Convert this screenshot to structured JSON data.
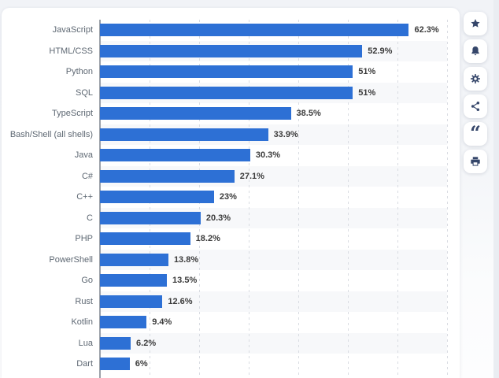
{
  "colors": {
    "bar": "#2d70d5",
    "page_bg": "#f1f3f7",
    "card_bg": "#ffffff",
    "axis": "#9ca1a9",
    "gridline": "#d9dce2",
    "row_band": "#f7f8fa",
    "category_label": "#5e6873",
    "value_label": "#3b3b3b",
    "icon": "#35466a"
  },
  "chart_data": {
    "type": "bar",
    "orientation": "horizontal",
    "title": "",
    "categories": [
      "JavaScript",
      "HTML/CSS",
      "Python",
      "SQL",
      "TypeScript",
      "Bash/Shell (all shells)",
      "Java",
      "C#",
      "C++",
      "C",
      "PHP",
      "PowerShell",
      "Go",
      "Rust",
      "Kotlin",
      "Lua",
      "Dart"
    ],
    "values": [
      62.3,
      52.9,
      51,
      51,
      38.5,
      33.9,
      30.3,
      27.1,
      23,
      20.3,
      18.2,
      13.8,
      13.5,
      12.6,
      9.4,
      6.2,
      6
    ],
    "value_labels": [
      "62.3%",
      "52.9%",
      "51%",
      "51%",
      "38.5%",
      "33.9%",
      "30.3%",
      "27.1%",
      "23%",
      "20.3%",
      "18.2%",
      "13.8%",
      "13.5%",
      "12.6%",
      "9.4%",
      "6.2%",
      "6%"
    ],
    "xlim": [
      0,
      70
    ],
    "gridline_interval": 10,
    "grid": "vertical-dashed",
    "row_striping": true,
    "legend": "none",
    "unit": "%"
  },
  "toolbar": {
    "buttons": [
      {
        "id": "favorite",
        "icon": "star-icon"
      },
      {
        "id": "alerts",
        "icon": "bell-icon"
      },
      {
        "id": "settings",
        "icon": "gear-icon"
      },
      {
        "id": "share",
        "icon": "share-icon"
      },
      {
        "id": "cite",
        "icon": "quote-icon",
        "glyph": "“"
      },
      {
        "id": "print",
        "icon": "printer-icon"
      }
    ]
  }
}
